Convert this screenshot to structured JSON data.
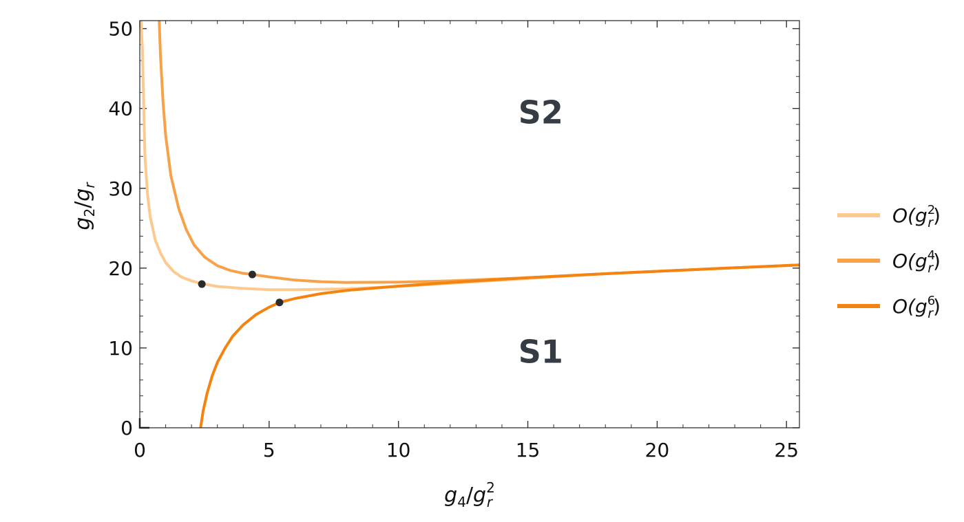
{
  "chart_data": {
    "type": "line",
    "title": "",
    "xlabel": {
      "base": "g",
      "sub": "4",
      "sep": "/",
      "base2": "g",
      "sub2": "r",
      "sup2": "2"
    },
    "ylabel": {
      "base": "g",
      "sub": "2",
      "sep": "/",
      "base2": "g",
      "sub2": "r"
    },
    "xlim": [
      0,
      25.5
    ],
    "ylim": [
      0,
      51
    ],
    "x_ticks": [
      "0",
      "5",
      "10",
      "15",
      "20",
      "25"
    ],
    "y_ticks": [
      "0",
      "10",
      "20",
      "30",
      "40",
      "50"
    ],
    "grid": false,
    "legend_position": "right",
    "series": [
      {
        "name": {
          "pre": "O(",
          "base": "g",
          "sub": "r",
          "sup": "2",
          "post": ")"
        },
        "color": "#fcc98f",
        "x": [
          0.05,
          0.1,
          0.2,
          0.3,
          0.4,
          0.6,
          0.8,
          1.0,
          1.3,
          1.6,
          2.0,
          2.4,
          3.0,
          4.0,
          5.0,
          6.0,
          8.0,
          10.0,
          12.0,
          15.0,
          18.0,
          20.0,
          22.0,
          25.5
        ],
        "y": [
          51,
          47.5,
          34,
          29.2,
          26.5,
          23.5,
          21.9,
          20.7,
          19.6,
          18.9,
          18.4,
          18.05,
          17.7,
          17.45,
          17.3,
          17.3,
          17.4,
          17.7,
          18.1,
          18.7,
          19.3,
          19.6,
          19.9,
          20.4
        ]
      },
      {
        "name": {
          "pre": "O(",
          "base": "g",
          "sub": "r",
          "sup": "4",
          "post": ")"
        },
        "color": "#f7a24b",
        "x": [
          0.75,
          0.8,
          0.9,
          1.0,
          1.2,
          1.5,
          1.8,
          2.1,
          2.5,
          3.0,
          3.5,
          4.0,
          4.35,
          5.0,
          6.0,
          7.0,
          8.0,
          10.0,
          12.0,
          15.0,
          18.0,
          20.0,
          22.0,
          25.5
        ],
        "y": [
          51,
          46.5,
          40.8,
          36.6,
          31.6,
          27.5,
          24.8,
          22.9,
          21.4,
          20.3,
          19.7,
          19.35,
          19.2,
          18.9,
          18.5,
          18.3,
          18.2,
          18.25,
          18.4,
          18.8,
          19.3,
          19.6,
          19.9,
          20.4
        ]
      },
      {
        "name": {
          "pre": "O(",
          "base": "g",
          "sub": "r",
          "sup": "6",
          "post": ")"
        },
        "color": "#f5830f",
        "x": [
          2.35,
          2.45,
          2.6,
          2.8,
          3.0,
          3.3,
          3.6,
          4.0,
          4.5,
          5.0,
          5.4,
          6.0,
          7.0,
          8.0,
          10.0,
          12.0,
          15.0,
          18.0,
          20.0,
          22.0,
          25.5
        ],
        "y": [
          0,
          2.1,
          4.3,
          6.5,
          8.2,
          10.0,
          11.5,
          12.9,
          14.2,
          15.1,
          15.7,
          16.2,
          16.8,
          17.2,
          17.75,
          18.2,
          18.8,
          19.3,
          19.6,
          19.9,
          20.4
        ]
      }
    ],
    "points": [
      {
        "x": 2.4,
        "y": 18.0,
        "color": "#2b2b2b"
      },
      {
        "x": 4.35,
        "y": 19.2,
        "color": "#2b2b2b"
      },
      {
        "x": 5.4,
        "y": 15.7,
        "color": "#2b2b2b"
      }
    ],
    "annotations": [
      {
        "text": "S2",
        "x": 15.5,
        "y": 39.5
      },
      {
        "text": "S1",
        "x": 15.5,
        "y": 9.5
      }
    ]
  }
}
